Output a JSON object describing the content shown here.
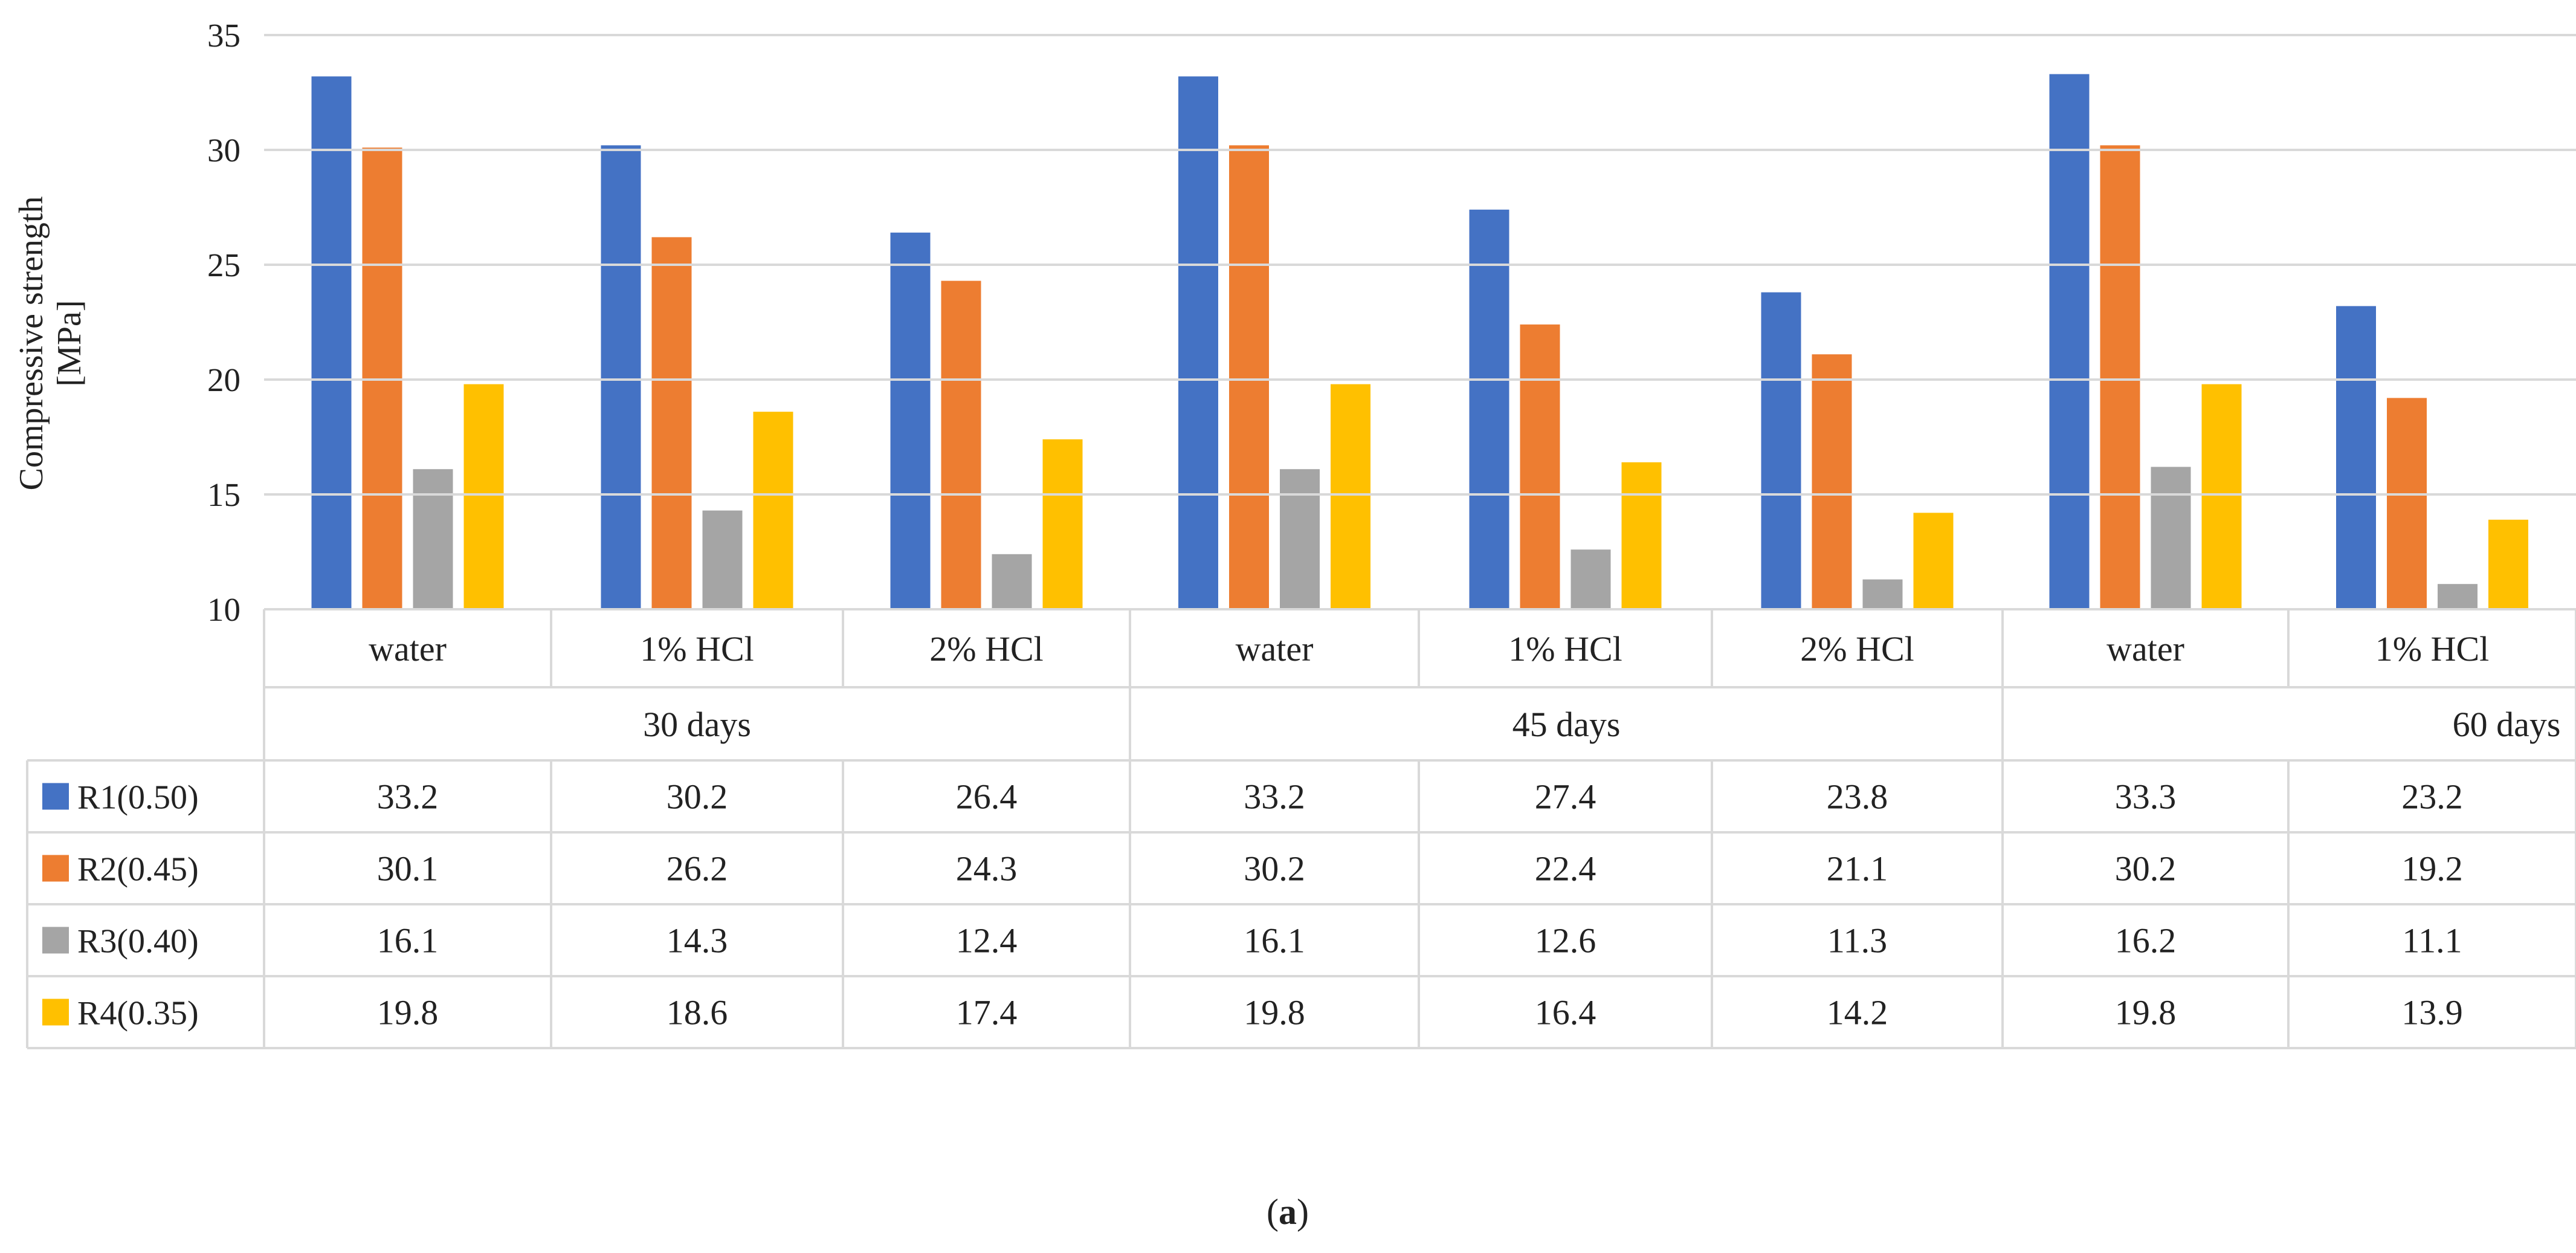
{
  "chart_data": {
    "type": "bar",
    "ylabel_line1": "Compressive strength",
    "ylabel_line2": "[MPa]",
    "ylim": [
      10,
      35
    ],
    "yticks": [
      "10",
      "15",
      "20",
      "25",
      "30",
      "35"
    ],
    "groups": [
      {
        "label": "30 days",
        "start": 0,
        "end": 3
      },
      {
        "label": "45 days",
        "start": 3,
        "end": 6
      },
      {
        "label": "60 days",
        "start": 6,
        "end": 8
      }
    ],
    "categories": [
      "water",
      "1% HCl",
      "2% HCl",
      "water",
      "1% HCl",
      "2% HCl",
      "water",
      "1% HCl"
    ],
    "series": [
      {
        "name": "R1(0.50)",
        "color": "#4472C4",
        "values": [
          33.2,
          30.2,
          26.4,
          33.2,
          27.4,
          23.8,
          33.3,
          23.2
        ]
      },
      {
        "name": "R2(0.45)",
        "color": "#ED7D31",
        "values": [
          30.1,
          26.2,
          24.3,
          30.2,
          22.4,
          21.1,
          30.2,
          19.2
        ]
      },
      {
        "name": "R3(0.40)",
        "color": "#A5A5A5",
        "values": [
          16.1,
          14.3,
          12.4,
          16.1,
          12.6,
          11.3,
          16.2,
          11.1
        ]
      },
      {
        "name": "R4(0.35)",
        "color": "#FFC000",
        "values": [
          19.8,
          18.6,
          17.4,
          19.8,
          16.4,
          14.2,
          19.8,
          13.9
        ]
      }
    ],
    "gridlines": true,
    "legend": "data table"
  },
  "caption": {
    "open": "(",
    "letter": "a",
    "close": ")"
  }
}
